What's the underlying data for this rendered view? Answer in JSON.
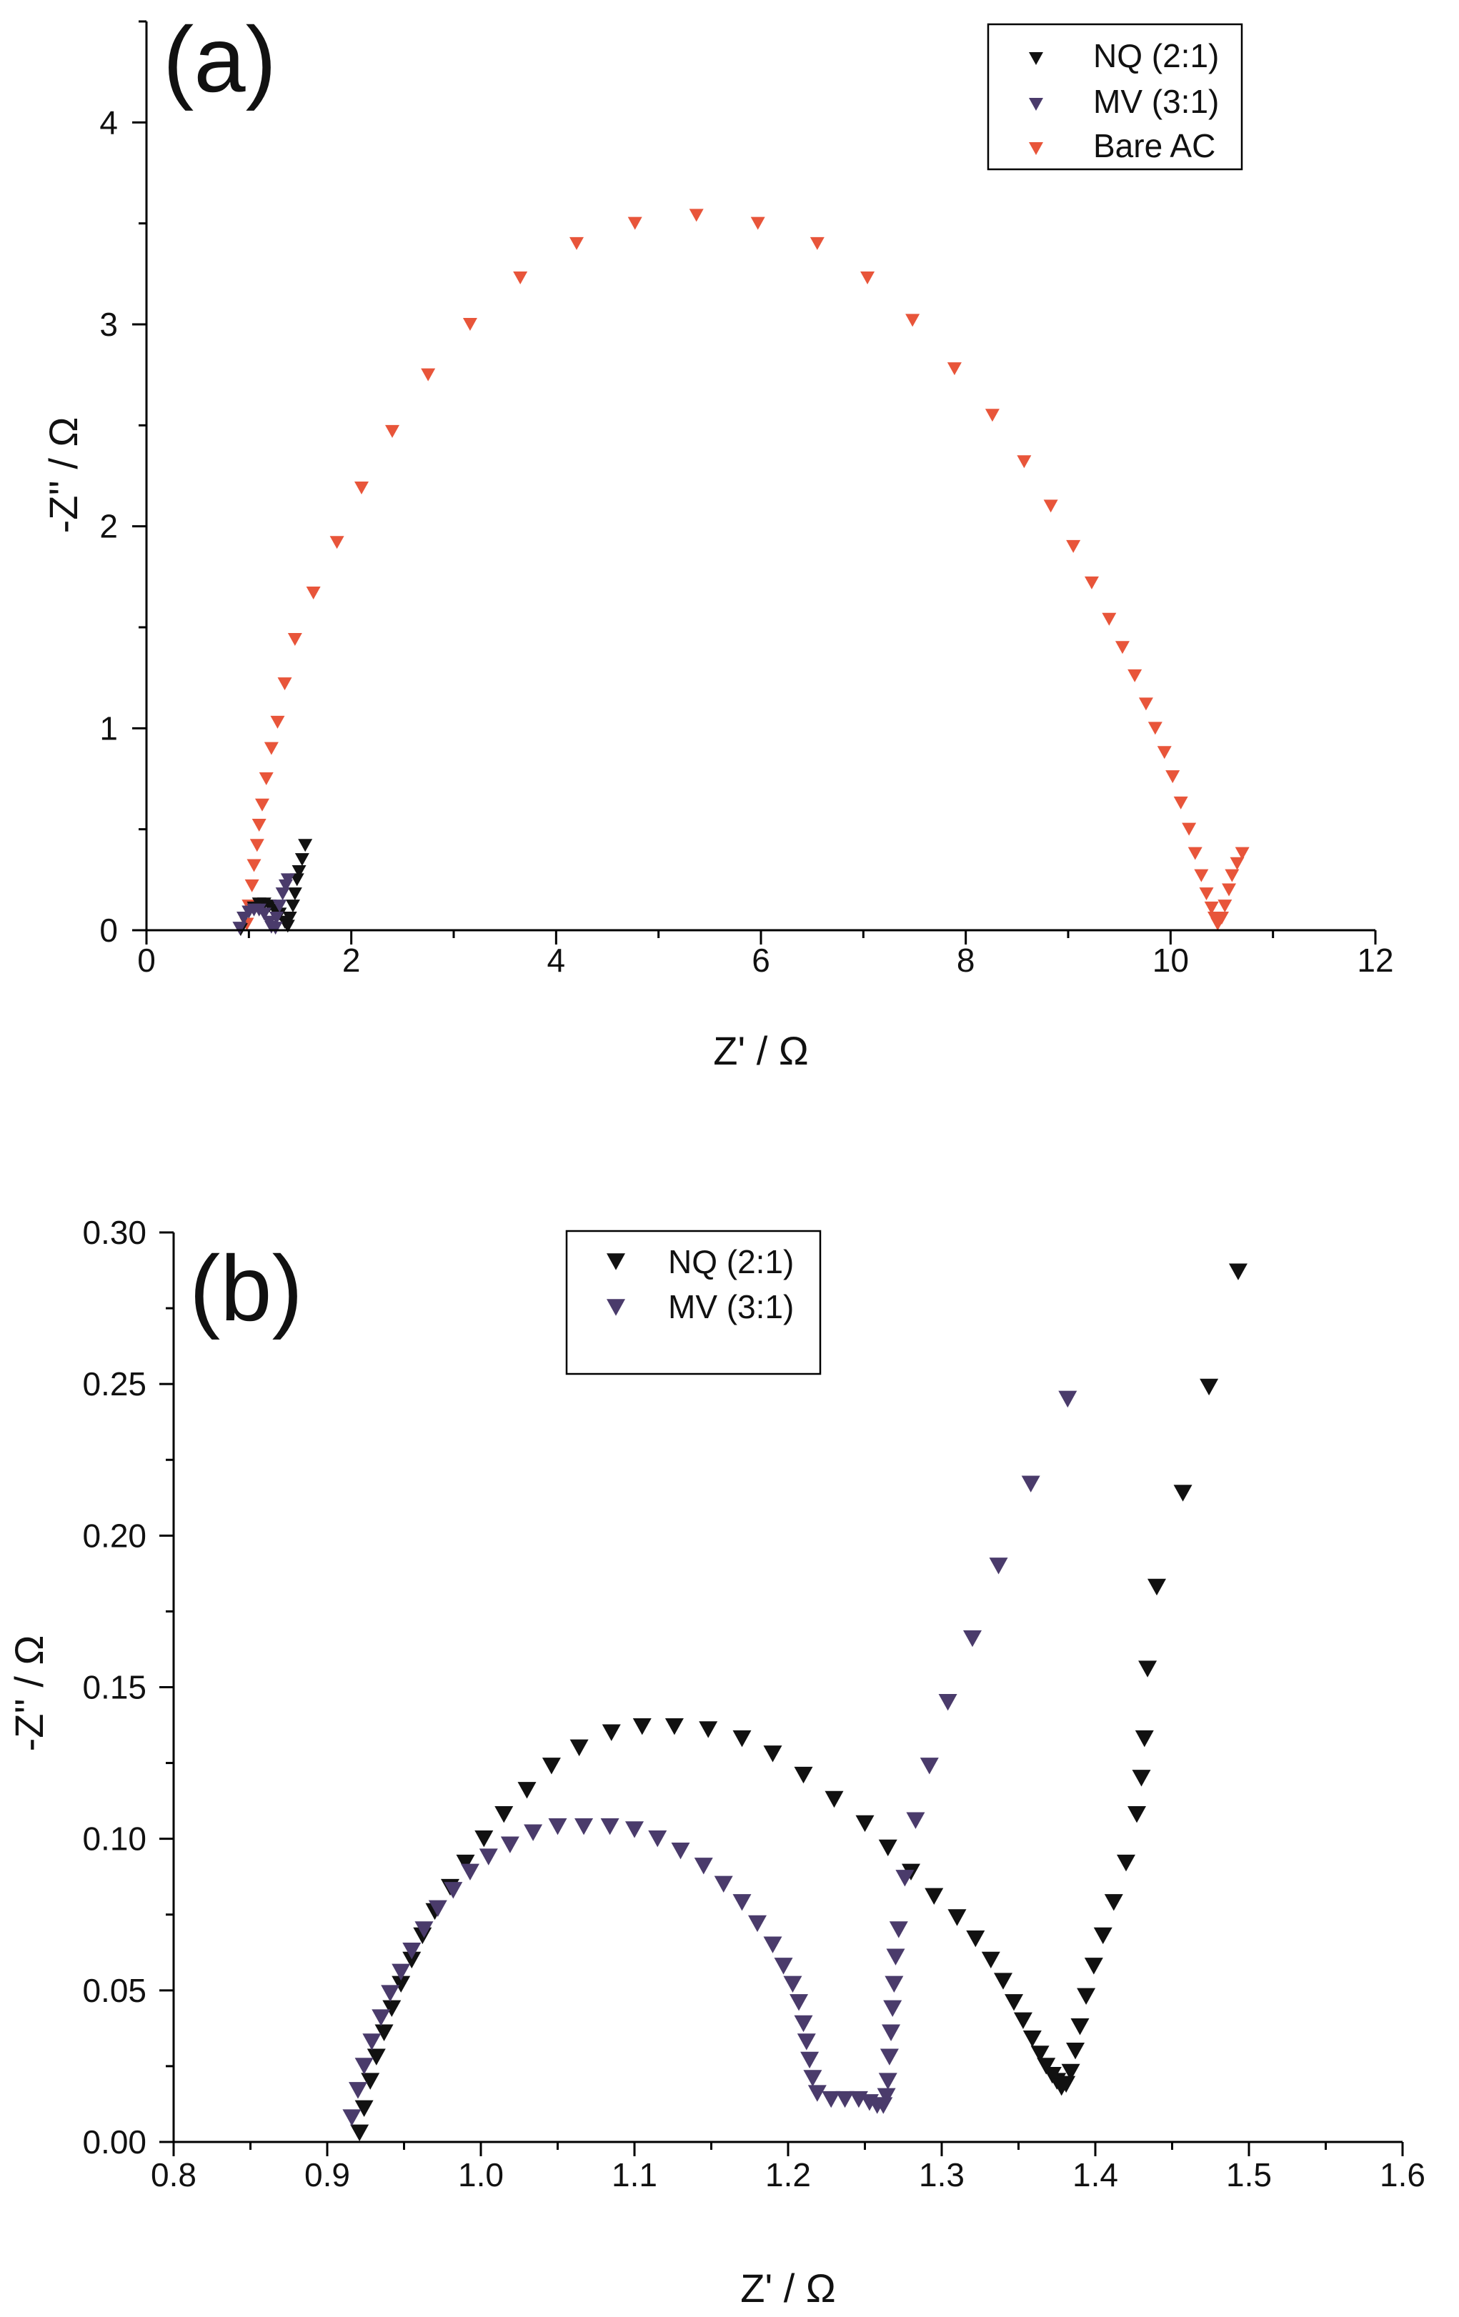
{
  "chart_data": [
    {
      "type": "scatter",
      "panel_label": "(a)",
      "title": "",
      "xlabel": "Z' / Ω",
      "ylabel": "-Z'' / Ω",
      "xlim": [
        0,
        12
      ],
      "ylim": [
        0,
        4.5
      ],
      "xticks": [
        0,
        2,
        4,
        6,
        8,
        10,
        12
      ],
      "xtick_labels": [
        "0",
        "2",
        "4",
        "6",
        "8",
        "10",
        "12"
      ],
      "yticks": [
        0,
        1,
        2,
        3,
        4
      ],
      "ytick_labels": [
        "0",
        "1",
        "2",
        "3",
        "4"
      ],
      "legend_position": "top-right",
      "marker": "down-triangle",
      "series": [
        {
          "name": "NQ (2:1)",
          "color": "#111111",
          "points": [
            [
              0.92,
              0.003
            ],
            [
              0.95,
              0.06
            ],
            [
              1.0,
              0.09
            ],
            [
              1.05,
              0.11
            ],
            [
              1.1,
              0.13
            ],
            [
              1.15,
              0.13
            ],
            [
              1.2,
              0.12
            ],
            [
              1.25,
              0.1
            ],
            [
              1.3,
              0.08
            ],
            [
              1.35,
              0.04
            ],
            [
              1.38,
              0.02
            ],
            [
              1.4,
              0.06
            ],
            [
              1.43,
              0.12
            ],
            [
              1.45,
              0.18
            ],
            [
              1.47,
              0.25
            ],
            [
              1.49,
              0.29
            ],
            [
              1.52,
              0.35
            ],
            [
              1.55,
              0.42
            ]
          ]
        },
        {
          "name": "MV (3:1)",
          "color": "#4a3b6b",
          "points": [
            [
              0.91,
              0.01
            ],
            [
              0.95,
              0.06
            ],
            [
              1.0,
              0.09
            ],
            [
              1.05,
              0.1
            ],
            [
              1.1,
              0.1
            ],
            [
              1.15,
              0.08
            ],
            [
              1.2,
              0.04
            ],
            [
              1.22,
              0.015
            ],
            [
              1.26,
              0.01
            ],
            [
              1.27,
              0.06
            ],
            [
              1.3,
              0.12
            ],
            [
              1.33,
              0.18
            ],
            [
              1.36,
              0.22
            ],
            [
              1.38,
              0.25
            ]
          ]
        },
        {
          "name": "Bare AC",
          "color": "#e8553a",
          "points": [
            [
              0.98,
              0.03
            ],
            [
              1.0,
              0.12
            ],
            [
              1.03,
              0.22
            ],
            [
              1.05,
              0.32
            ],
            [
              1.08,
              0.42
            ],
            [
              1.1,
              0.52
            ],
            [
              1.13,
              0.62
            ],
            [
              1.17,
              0.75
            ],
            [
              1.22,
              0.9
            ],
            [
              1.28,
              1.03
            ],
            [
              1.35,
              1.22
            ],
            [
              1.45,
              1.44
            ],
            [
              1.63,
              1.67
            ],
            [
              1.86,
              1.92
            ],
            [
              2.1,
              2.19
            ],
            [
              2.4,
              2.47
            ],
            [
              2.75,
              2.75
            ],
            [
              3.16,
              3.0
            ],
            [
              3.65,
              3.23
            ],
            [
              4.2,
              3.4
            ],
            [
              4.77,
              3.5
            ],
            [
              5.37,
              3.54
            ],
            [
              5.97,
              3.5
            ],
            [
              6.55,
              3.4
            ],
            [
              7.04,
              3.23
            ],
            [
              7.48,
              3.02
            ],
            [
              7.89,
              2.78
            ],
            [
              8.26,
              2.55
            ],
            [
              8.57,
              2.32
            ],
            [
              8.83,
              2.1
            ],
            [
              9.05,
              1.9
            ],
            [
              9.23,
              1.72
            ],
            [
              9.4,
              1.54
            ],
            [
              9.53,
              1.4
            ],
            [
              9.65,
              1.26
            ],
            [
              9.76,
              1.12
            ],
            [
              9.85,
              1.0
            ],
            [
              9.94,
              0.88
            ],
            [
              10.02,
              0.76
            ],
            [
              10.1,
              0.63
            ],
            [
              10.18,
              0.5
            ],
            [
              10.24,
              0.38
            ],
            [
              10.3,
              0.27
            ],
            [
              10.35,
              0.18
            ],
            [
              10.4,
              0.11
            ],
            [
              10.43,
              0.06
            ],
            [
              10.46,
              0.03
            ],
            [
              10.5,
              0.06
            ],
            [
              10.53,
              0.12
            ],
            [
              10.57,
              0.2
            ],
            [
              10.6,
              0.27
            ],
            [
              10.65,
              0.33
            ],
            [
              10.7,
              0.38
            ]
          ]
        }
      ]
    },
    {
      "type": "scatter",
      "panel_label": "(b)",
      "title": "",
      "xlabel": "Z' / Ω",
      "ylabel": "-Z'' / Ω",
      "xlim": [
        0.8,
        1.6
      ],
      "ylim": [
        0,
        0.3
      ],
      "xticks": [
        0.8,
        0.9,
        1.0,
        1.1,
        1.2,
        1.3,
        1.4,
        1.5,
        1.6
      ],
      "xtick_labels": [
        "0.8",
        "0.9",
        "1.0",
        "1.1",
        "1.2",
        "1.3",
        "1.4",
        "1.5",
        "1.6"
      ],
      "yticks": [
        0,
        0.05,
        0.1,
        0.15,
        0.2,
        0.25,
        0.3
      ],
      "ytick_labels": [
        "0.00",
        "0.05",
        "0.10",
        "0.15",
        "0.20",
        "0.25",
        "0.30"
      ],
      "legend_position": "top-center",
      "marker": "down-triangle",
      "series": [
        {
          "name": "NQ (2:1)",
          "color": "#111111",
          "points": [
            [
              0.921,
              0.003
            ],
            [
              0.924,
              0.011
            ],
            [
              0.928,
              0.02
            ],
            [
              0.932,
              0.028
            ],
            [
              0.937,
              0.036
            ],
            [
              0.942,
              0.044
            ],
            [
              0.948,
              0.052
            ],
            [
              0.955,
              0.06
            ],
            [
              0.962,
              0.068
            ],
            [
              0.97,
              0.076
            ],
            [
              0.98,
              0.084
            ],
            [
              0.99,
              0.092
            ],
            [
              1.002,
              0.1
            ],
            [
              1.015,
              0.108
            ],
            [
              1.03,
              0.116
            ],
            [
              1.046,
              0.124
            ],
            [
              1.064,
              0.13
            ],
            [
              1.085,
              0.135
            ],
            [
              1.105,
              0.137
            ],
            [
              1.126,
              0.137
            ],
            [
              1.148,
              0.136
            ],
            [
              1.17,
              0.133
            ],
            [
              1.19,
              0.128
            ],
            [
              1.21,
              0.121
            ],
            [
              1.23,
              0.113
            ],
            [
              1.25,
              0.105
            ],
            [
              1.265,
              0.097
            ],
            [
              1.28,
              0.089
            ],
            [
              1.295,
              0.081
            ],
            [
              1.31,
              0.074
            ],
            [
              1.322,
              0.067
            ],
            [
              1.332,
              0.06
            ],
            [
              1.34,
              0.053
            ],
            [
              1.347,
              0.046
            ],
            [
              1.353,
              0.04
            ],
            [
              1.359,
              0.034
            ],
            [
              1.364,
              0.029
            ],
            [
              1.368,
              0.025
            ],
            [
              1.372,
              0.022
            ],
            [
              1.375,
              0.02
            ],
            [
              1.378,
              0.018
            ],
            [
              1.381,
              0.019
            ],
            [
              1.384,
              0.023
            ],
            [
              1.387,
              0.03
            ],
            [
              1.39,
              0.038
            ],
            [
              1.394,
              0.048
            ],
            [
              1.399,
              0.058
            ],
            [
              1.405,
              0.068
            ],
            [
              1.412,
              0.079
            ],
            [
              1.42,
              0.092
            ],
            [
              1.427,
              0.108
            ],
            [
              1.43,
              0.12
            ],
            [
              1.432,
              0.133
            ],
            [
              1.434,
              0.156
            ],
            [
              1.44,
              0.183
            ],
            [
              1.457,
              0.214
            ],
            [
              1.474,
              0.249
            ],
            [
              1.493,
              0.287
            ]
          ]
        },
        {
          "name": "MV (3:1)",
          "color": "#4a3b6b",
          "points": [
            [
              0.916,
              0.008
            ],
            [
              0.92,
              0.017
            ],
            [
              0.924,
              0.025
            ],
            [
              0.929,
              0.033
            ],
            [
              0.935,
              0.041
            ],
            [
              0.941,
              0.049
            ],
            [
              0.948,
              0.056
            ],
            [
              0.955,
              0.063
            ],
            [
              0.963,
              0.07
            ],
            [
              0.972,
              0.077
            ],
            [
              0.982,
              0.083
            ],
            [
              0.993,
              0.089
            ],
            [
              1.005,
              0.094
            ],
            [
              1.019,
              0.098
            ],
            [
              1.034,
              0.102
            ],
            [
              1.05,
              0.104
            ],
            [
              1.067,
              0.104
            ],
            [
              1.084,
              0.104
            ],
            [
              1.1,
              0.103
            ],
            [
              1.115,
              0.1
            ],
            [
              1.13,
              0.096
            ],
            [
              1.145,
              0.091
            ],
            [
              1.158,
              0.085
            ],
            [
              1.17,
              0.079
            ],
            [
              1.18,
              0.072
            ],
            [
              1.19,
              0.065
            ],
            [
              1.197,
              0.058
            ],
            [
              1.203,
              0.052
            ],
            [
              1.207,
              0.046
            ],
            [
              1.21,
              0.039
            ],
            [
              1.212,
              0.033
            ],
            [
              1.214,
              0.027
            ],
            [
              1.216,
              0.021
            ],
            [
              1.219,
              0.016
            ],
            [
              1.228,
              0.014
            ],
            [
              1.237,
              0.014
            ],
            [
              1.246,
              0.014
            ],
            [
              1.253,
              0.013
            ],
            [
              1.258,
              0.012
            ],
            [
              1.262,
              0.012
            ],
            [
              1.264,
              0.015
            ],
            [
              1.265,
              0.02
            ],
            [
              1.266,
              0.028
            ],
            [
              1.267,
              0.036
            ],
            [
              1.268,
              0.044
            ],
            [
              1.269,
              0.052
            ],
            [
              1.27,
              0.061
            ],
            [
              1.272,
              0.07
            ],
            [
              1.276,
              0.087
            ],
            [
              1.283,
              0.106
            ],
            [
              1.292,
              0.124
            ],
            [
              1.304,
              0.145
            ],
            [
              1.32,
              0.166
            ],
            [
              1.337,
              0.19
            ],
            [
              1.358,
              0.217
            ],
            [
              1.382,
              0.245
            ]
          ]
        }
      ]
    }
  ]
}
